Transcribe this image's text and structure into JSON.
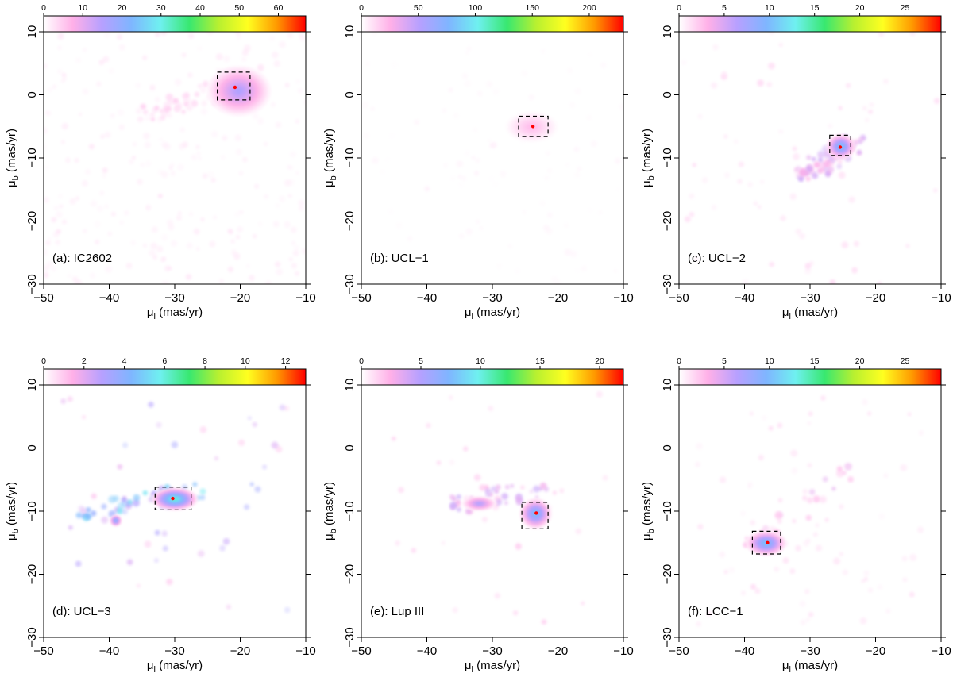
{
  "figure": {
    "description_units": "proper motion density maps",
    "colorbar_colors": [
      "#ffffff",
      "#ffb0e8",
      "#b7a0ff",
      "#7fb5ff",
      "#6ff0f0",
      "#38e870",
      "#b8f030",
      "#ffff20",
      "#ff9a00",
      "#ff0000"
    ]
  },
  "chart_data": [
    {
      "type": "heatmap",
      "panel_label": "(a): IC2602",
      "xlabel": "μ",
      "xlabel_sub": "l",
      "xlabel_units": " (mas/yr)",
      "ylabel": "μ",
      "ylabel_sub": "b",
      "ylabel_units": " (mas/yr)",
      "xlim": [
        -50,
        -10
      ],
      "ylim": [
        -30,
        10
      ],
      "x_ticks": [
        "−50",
        "−40",
        "−30",
        "−20",
        "−10"
      ],
      "y_ticks": [
        "−30",
        "−20",
        "−10",
        "0",
        "10"
      ],
      "colorbar": {
        "range": [
          0,
          67
        ],
        "ticks": [
          "0",
          "10",
          "20",
          "30",
          "40",
          "50",
          "60"
        ],
        "tick_values": [
          0,
          10,
          20,
          30,
          40,
          50,
          60
        ]
      },
      "box": {
        "x": [
          -23.5,
          -18.5
        ],
        "y": [
          -0.8,
          3.6
        ]
      },
      "peak": {
        "x": -20.8,
        "y": 1.2
      },
      "blobs": [
        {
          "x": -20.8,
          "y": 1.2,
          "value": 67,
          "sx": 0.9,
          "sy": 0.7
        },
        {
          "x": -21.0,
          "y": 1.3,
          "value": 30,
          "sx": 1.6,
          "sy": 1.3
        },
        {
          "x": -20.2,
          "y": 0.6,
          "value": 18,
          "sx": 2.2,
          "sy": 1.8
        }
      ],
      "background": {
        "x": [
          -50,
          -10
        ],
        "y": [
          -30,
          10
        ],
        "count": 240,
        "value": 3
      },
      "stream": {
        "from": [
          -35,
          -3
        ],
        "to": [
          -18,
          2
        ],
        "count": 60,
        "value": 4
      }
    },
    {
      "type": "heatmap",
      "panel_label": "(b): UCL−1",
      "xlabel": "μ",
      "xlabel_sub": "l",
      "xlabel_units": " (mas/yr)",
      "ylabel": "μ",
      "ylabel_sub": "b",
      "ylabel_units": " (mas/yr)",
      "xlim": [
        -50,
        -10
      ],
      "ylim": [
        -30,
        10
      ],
      "x_ticks": [
        "−50",
        "−40",
        "−30",
        "−20",
        "−10"
      ],
      "y_ticks": [
        "−30",
        "−20",
        "−10",
        "0",
        "10"
      ],
      "colorbar": {
        "range": [
          0,
          230
        ],
        "ticks": [
          "0",
          "50",
          "100",
          "150",
          "200"
        ],
        "tick_values": [
          0,
          50,
          100,
          150,
          200
        ]
      },
      "box": {
        "x": [
          -26.0,
          -21.5
        ],
        "y": [
          -6.6,
          -3.4
        ]
      },
      "peak": {
        "x": -23.8,
        "y": -5.0
      },
      "blobs": [
        {
          "x": -23.8,
          "y": -5.0,
          "value": 230,
          "sx": 0.7,
          "sy": 0.45
        },
        {
          "x": -23.9,
          "y": -5.0,
          "value": 70,
          "sx": 1.3,
          "sy": 0.8
        },
        {
          "x": -24.0,
          "y": -5.1,
          "value": 25,
          "sx": 1.8,
          "sy": 1.1
        }
      ],
      "background": {
        "x": [
          -50,
          -10
        ],
        "y": [
          -30,
          10
        ],
        "count": 80,
        "value": 4
      },
      "stream": {
        "from": [
          -40,
          -15
        ],
        "to": [
          -25,
          -6
        ],
        "count": 10,
        "value": 5
      }
    },
    {
      "type": "heatmap",
      "panel_label": "(c): UCL−2",
      "xlabel": "μ",
      "xlabel_sub": "l",
      "xlabel_units": " (mas/yr)",
      "ylabel": "μ",
      "ylabel_sub": "b",
      "ylabel_units": " (mas/yr)",
      "xlim": [
        -50,
        -10
      ],
      "ylim": [
        -30,
        10
      ],
      "x_ticks": [
        "−50",
        "−40",
        "−30",
        "−20",
        "−10"
      ],
      "y_ticks": [
        "−30",
        "−20",
        "−10",
        "0",
        "10"
      ],
      "colorbar": {
        "range": [
          0,
          29
        ],
        "ticks": [
          "0",
          "5",
          "10",
          "15",
          "20",
          "25"
        ],
        "tick_values": [
          0,
          5,
          10,
          15,
          20,
          25
        ]
      },
      "box": {
        "x": [
          -27.0,
          -23.8
        ],
        "y": [
          -9.6,
          -6.4
        ]
      },
      "peak": {
        "x": -25.4,
        "y": -8.3
      },
      "blobs": [
        {
          "x": -25.4,
          "y": -8.3,
          "value": 29,
          "sx": 0.55,
          "sy": 0.5
        },
        {
          "x": -25.3,
          "y": -8.2,
          "value": 12,
          "sx": 1.0,
          "sy": 0.9
        }
      ],
      "background": {
        "x": [
          -50,
          -10
        ],
        "y": [
          -30,
          10
        ],
        "count": 60,
        "value": 2
      },
      "stream": {
        "from": [
          -32,
          -13
        ],
        "to": [
          -23,
          -7.5
        ],
        "count": 80,
        "value": 4
      }
    },
    {
      "type": "heatmap",
      "panel_label": "(d): UCL−3",
      "xlabel": "μ",
      "xlabel_sub": "l",
      "xlabel_units": " (mas/yr)",
      "ylabel": "μ",
      "ylabel_sub": "b",
      "ylabel_units": " (mas/yr)",
      "xlim": [
        -50,
        -10
      ],
      "ylim": [
        -30,
        10
      ],
      "x_ticks": [
        "−50",
        "−40",
        "−30",
        "−20",
        "−10"
      ],
      "y_ticks": [
        "−30",
        "−20",
        "−10",
        "0",
        "10"
      ],
      "colorbar": {
        "range": [
          0,
          13
        ],
        "ticks": [
          "0",
          "2",
          "4",
          "6",
          "8",
          "10",
          "12"
        ],
        "tick_values": [
          0,
          2,
          4,
          6,
          8,
          10,
          12
        ]
      },
      "box": {
        "x": [
          -33.0,
          -27.5
        ],
        "y": [
          -9.8,
          -6.2
        ]
      },
      "peak": {
        "x": -30.3,
        "y": -8.0
      },
      "blobs": [
        {
          "x": -30.3,
          "y": -8.0,
          "value": 13,
          "sx": 0.6,
          "sy": 0.5
        },
        {
          "x": -30.0,
          "y": -8.1,
          "value": 7,
          "sx": 1.6,
          "sy": 0.8
        },
        {
          "x": -39.0,
          "y": -11.5,
          "value": 5,
          "sx": 0.4,
          "sy": 0.4
        }
      ],
      "background": {
        "x": [
          -48,
          -12
        ],
        "y": [
          -28,
          9
        ],
        "count": 40,
        "value": 3
      },
      "stream": {
        "from": [
          -44,
          -10
        ],
        "to": [
          -26,
          -7
        ],
        "count": 55,
        "value": 4
      }
    },
    {
      "type": "heatmap",
      "panel_label": "(e): Lup III",
      "xlabel": "μ",
      "xlabel_sub": "l",
      "xlabel_units": " (mas/yr)",
      "ylabel": "μ",
      "ylabel_sub": "b",
      "ylabel_units": " (mas/yr)",
      "xlim": [
        -50,
        -10
      ],
      "ylim": [
        -30,
        10
      ],
      "x_ticks": [
        "−50",
        "−40",
        "−30",
        "−20",
        "−10"
      ],
      "y_ticks": [
        "−30",
        "−20",
        "−10",
        "0",
        "10"
      ],
      "colorbar": {
        "range": [
          0,
          22
        ],
        "ticks": [
          "0",
          "5",
          "10",
          "15",
          "20"
        ],
        "tick_values": [
          0,
          5,
          10,
          15,
          20
        ]
      },
      "box": {
        "x": [
          -25.5,
          -21.5
        ],
        "y": [
          -12.8,
          -8.6
        ]
      },
      "peak": {
        "x": -23.3,
        "y": -10.3
      },
      "blobs": [
        {
          "x": -23.3,
          "y": -10.3,
          "value": 22,
          "sx": 0.6,
          "sy": 0.6
        },
        {
          "x": -23.4,
          "y": -10.4,
          "value": 9,
          "sx": 1.1,
          "sy": 1.1
        },
        {
          "x": -32.0,
          "y": -8.8,
          "value": 6,
          "sx": 1.2,
          "sy": 0.5
        }
      ],
      "background": {
        "x": [
          -48,
          -12
        ],
        "y": [
          -28,
          9
        ],
        "count": 25,
        "value": 2
      },
      "stream": {
        "from": [
          -37,
          -9
        ],
        "to": [
          -21,
          -6
        ],
        "count": 45,
        "value": 3
      }
    },
    {
      "type": "heatmap",
      "panel_label": "(f): LCC−1",
      "xlabel": "μ",
      "xlabel_sub": "l",
      "xlabel_units": " (mas/yr)",
      "ylabel": "μ",
      "ylabel_sub": "b",
      "ylabel_units": " (mas/yr)",
      "xlim": [
        -50,
        -10
      ],
      "ylim": [
        -30,
        10
      ],
      "x_ticks": [
        "−50",
        "−40",
        "−30",
        "−20",
        "−10"
      ],
      "y_ticks": [
        "−30",
        "−20",
        "−10",
        "0",
        "10"
      ],
      "colorbar": {
        "range": [
          0,
          29
        ],
        "ticks": [
          "0",
          "5",
          "10",
          "15",
          "20",
          "25"
        ],
        "tick_values": [
          0,
          5,
          10,
          15,
          20,
          25
        ]
      },
      "box": {
        "x": [
          -38.8,
          -34.5
        ],
        "y": [
          -16.8,
          -13.2
        ]
      },
      "peak": {
        "x": -36.5,
        "y": -15.0
      },
      "blobs": [
        {
          "x": -36.5,
          "y": -15.0,
          "value": 29,
          "sx": 0.7,
          "sy": 0.5
        },
        {
          "x": -36.7,
          "y": -15.1,
          "value": 12,
          "sx": 1.4,
          "sy": 0.9
        }
      ],
      "background": {
        "x": [
          -48,
          -12
        ],
        "y": [
          -28,
          8
        ],
        "count": 70,
        "value": 2
      },
      "stream": {
        "from": [
          -40,
          -17
        ],
        "to": [
          -22,
          -2
        ],
        "count": 30,
        "value": 3
      }
    }
  ]
}
